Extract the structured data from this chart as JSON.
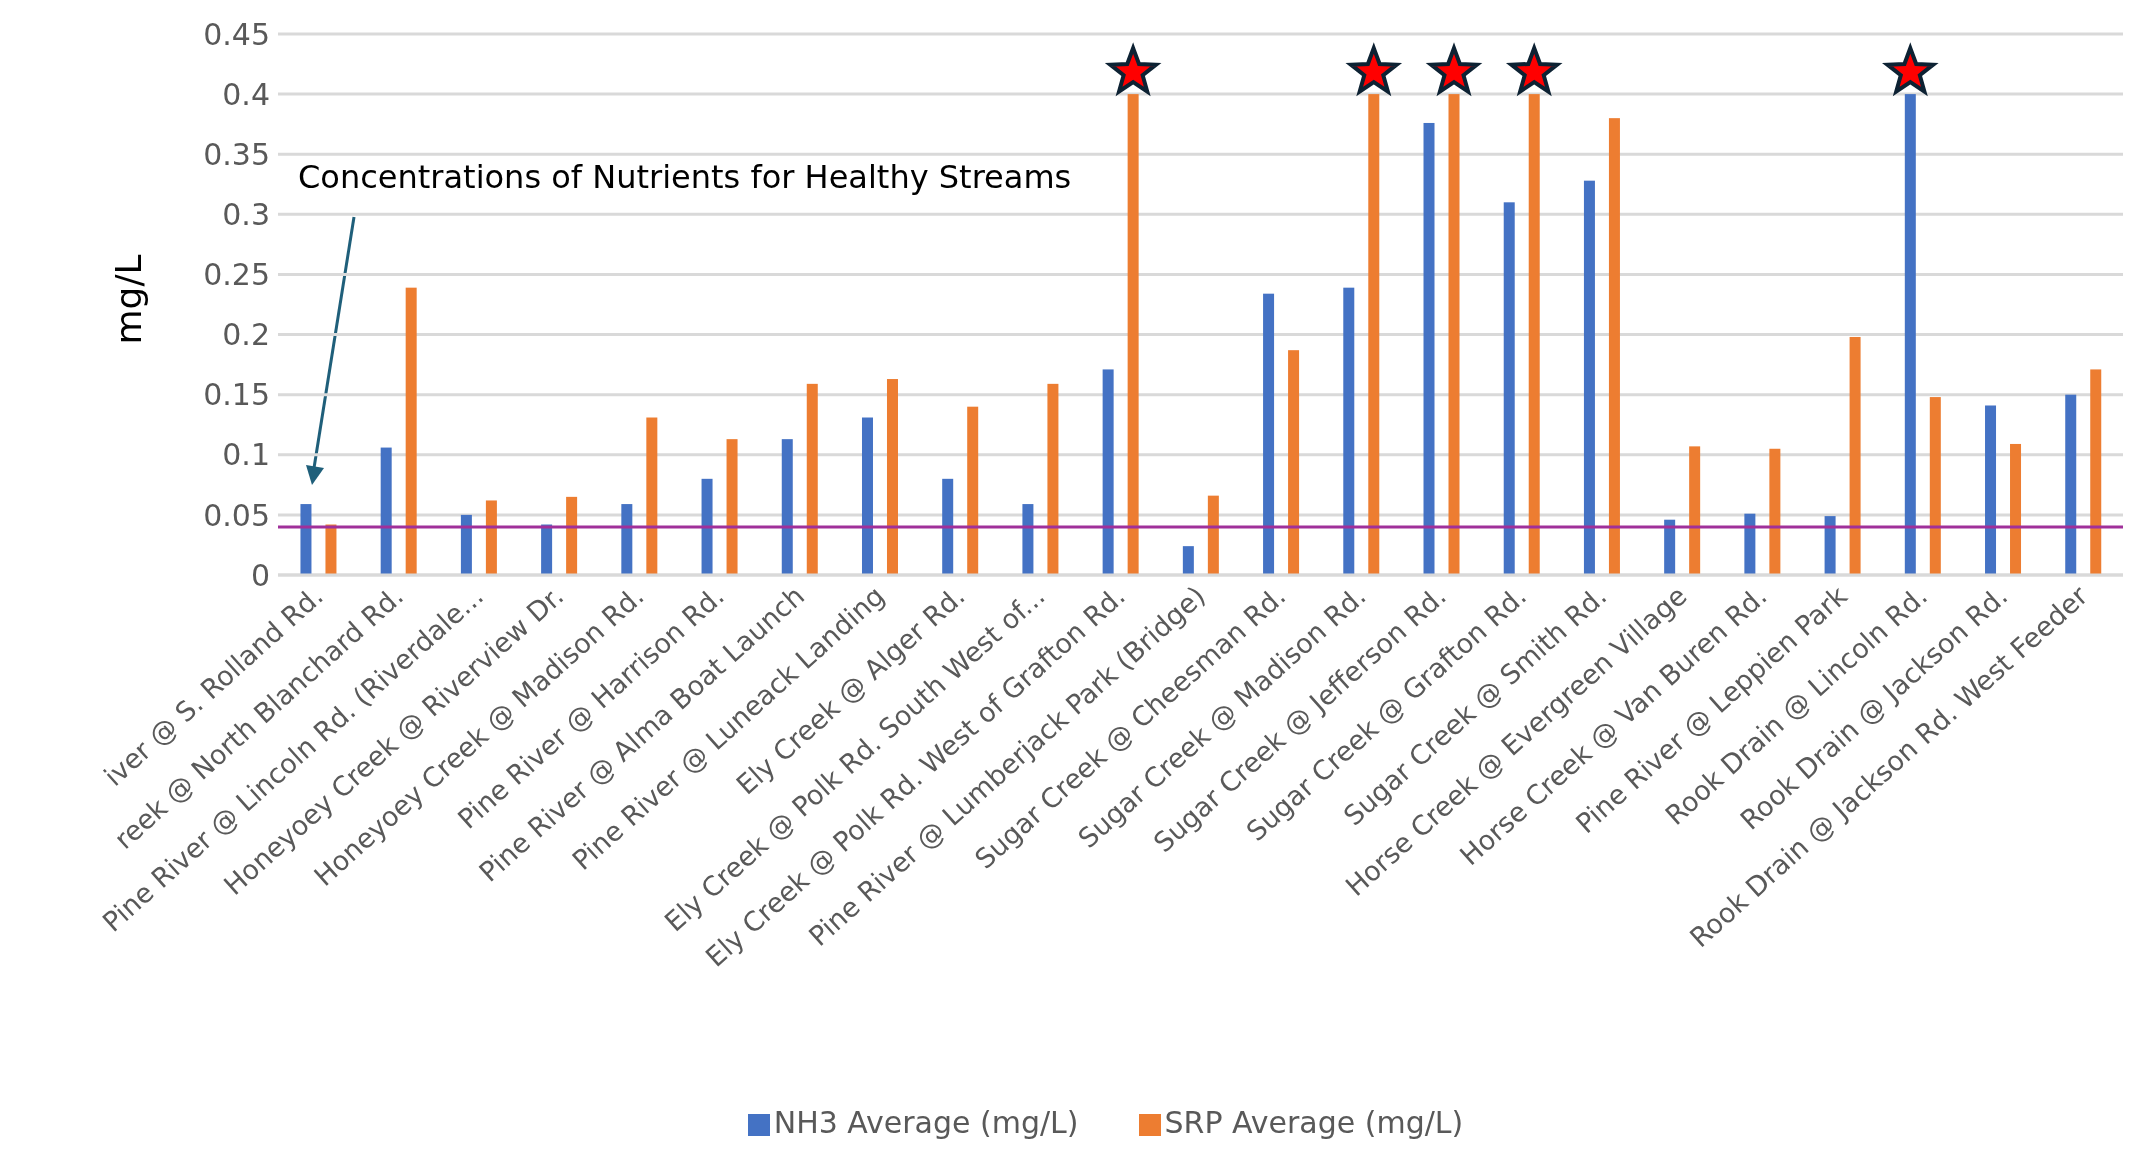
{
  "chart_data": {
    "type": "bar",
    "ylabel": "mg/L",
    "categories": [
      "iver @ S. Rolland Rd.",
      "reek @ North Blanchard Rd.",
      "Pine River @ Lincoln Rd. (Riverdale...",
      "Honeyoey Creek @ Riverview Dr.",
      "Honeyoey Creek @ Madison Rd.",
      "Pine River @ Harrison Rd.",
      "Pine River @ Alma Boat Launch",
      "Pine River @ Luneack Landing",
      "Ely Creek @ Alger Rd.",
      "Ely Creek @ Polk Rd. South West of...",
      "Ely Creek @ Polk Rd. West of Grafton Rd.",
      "Pine River @ Lumberjack Park (Bridge)",
      "Sugar Creek @ Cheesman Rd.",
      "Sugar Creek @ Madison Rd.",
      "Sugar Creek @ Jefferson Rd.",
      "Sugar Creek @ Grafton Rd.",
      "Sugar Creek @ Smith Rd.",
      "Horse Creek @ Evergreen Village",
      "Horse Creek @ Van Buren Rd.",
      "Pine River @ Leppien Park",
      "Rook Drain @ Lincoln Rd.",
      "Rook Drain @ Jackson Rd.",
      "Rook Drain @ Jackson Rd. West Feeder"
    ],
    "series": [
      {
        "name": "NH3 Average (mg/L)",
        "color": "#4472c4",
        "values": [
          0.059,
          0.106,
          0.05,
          0.042,
          0.059,
          0.08,
          0.113,
          0.131,
          0.08,
          0.059,
          0.171,
          0.024,
          0.234,
          0.239,
          0.376,
          0.31,
          0.328,
          0.046,
          0.051,
          0.049,
          0.4,
          0.141,
          0.15
        ]
      },
      {
        "name": "SRP Average (mg/L)",
        "color": "#ed7d31",
        "values": [
          0.042,
          0.239,
          0.062,
          0.065,
          0.131,
          0.113,
          0.159,
          0.163,
          0.14,
          0.159,
          0.4,
          0.066,
          0.187,
          0.4,
          0.4,
          0.4,
          0.38,
          0.107,
          0.105,
          0.198,
          0.148,
          0.109,
          0.171
        ]
      }
    ],
    "ylim": [
      0,
      0.45
    ],
    "yticks": [
      0,
      0.05,
      0.1,
      0.15,
      0.2,
      0.25,
      0.3,
      0.35,
      0.4,
      0.45
    ],
    "grid": "y",
    "legend": "bottom",
    "ref_lines": [
      {
        "axis": "y",
        "value": 0.04,
        "color": "#a0309a"
      }
    ],
    "annotations": [
      "Concentrations of Nutrients for Healthy Streams"
    ]
  }
}
